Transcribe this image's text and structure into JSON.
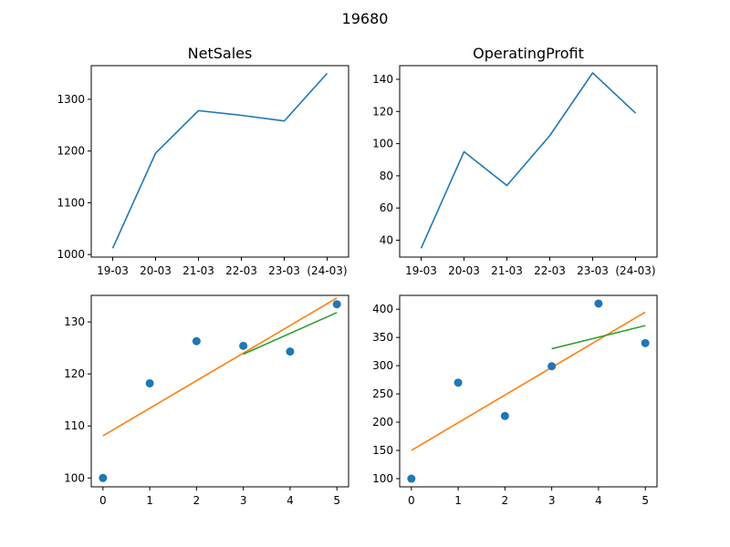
{
  "figure": {
    "suptitle": "19680"
  },
  "chart_data": [
    {
      "id": "ax1",
      "type": "line",
      "title": "NetSales",
      "categories": [
        "19-03",
        "20-03",
        "21-03",
        "22-03",
        "23-03",
        "(24-03)"
      ],
      "series": [
        {
          "values": [
            1012,
            1196,
            1278,
            1269,
            1258,
            1350
          ],
          "color": "#1f77b4"
        }
      ],
      "ylim": [
        995,
        1365
      ],
      "yticks": [
        1000,
        1100,
        1200,
        1300
      ]
    },
    {
      "id": "ax2",
      "type": "line",
      "title": "OperatingProfit",
      "categories": [
        "19-03",
        "20-03",
        "21-03",
        "22-03",
        "23-03",
        "(24-03)"
      ],
      "series": [
        {
          "values": [
            35,
            95,
            74,
            105,
            144,
            119
          ],
          "color": "#1f77b4"
        }
      ],
      "ylim": [
        29.5,
        148.5
      ],
      "yticks": [
        40,
        60,
        80,
        100,
        120,
        140
      ]
    },
    {
      "id": "ax3",
      "type": "scatter",
      "title": "",
      "xlim": [
        -0.25,
        5.25
      ],
      "xticks": [
        0,
        1,
        2,
        3,
        4,
        5
      ],
      "ylim": [
        98.3,
        135.1
      ],
      "yticks": [
        100,
        110,
        120,
        130
      ],
      "points": {
        "x": [
          0,
          1,
          2,
          3,
          4,
          5
        ],
        "y": [
          100,
          118.2,
          126.3,
          125.4,
          124.3,
          133.4
        ],
        "color": "#1f77b4"
      },
      "fit_lines": [
        {
          "x": [
            0,
            5
          ],
          "y": [
            108.1,
            134.6
          ],
          "color": "#ff7f0e"
        },
        {
          "x": [
            3,
            5
          ],
          "y": [
            123.8,
            131.8
          ],
          "color": "#2ca02c"
        }
      ]
    },
    {
      "id": "ax4",
      "type": "scatter",
      "title": "",
      "xlim": [
        -0.25,
        5.25
      ],
      "xticks": [
        0,
        1,
        2,
        3,
        4,
        5
      ],
      "ylim": [
        85.5,
        424.5
      ],
      "yticks": [
        100,
        150,
        200,
        250,
        300,
        350,
        400
      ],
      "points": {
        "x": [
          0,
          1,
          2,
          3,
          4,
          5
        ],
        "y": [
          100,
          270,
          211,
          299,
          410,
          340
        ],
        "color": "#1f77b4"
      },
      "fit_lines": [
        {
          "x": [
            0,
            5
          ],
          "y": [
            150,
            395
          ],
          "color": "#ff7f0e"
        },
        {
          "x": [
            3,
            5
          ],
          "y": [
            330,
            371
          ],
          "color": "#2ca02c"
        }
      ]
    }
  ]
}
